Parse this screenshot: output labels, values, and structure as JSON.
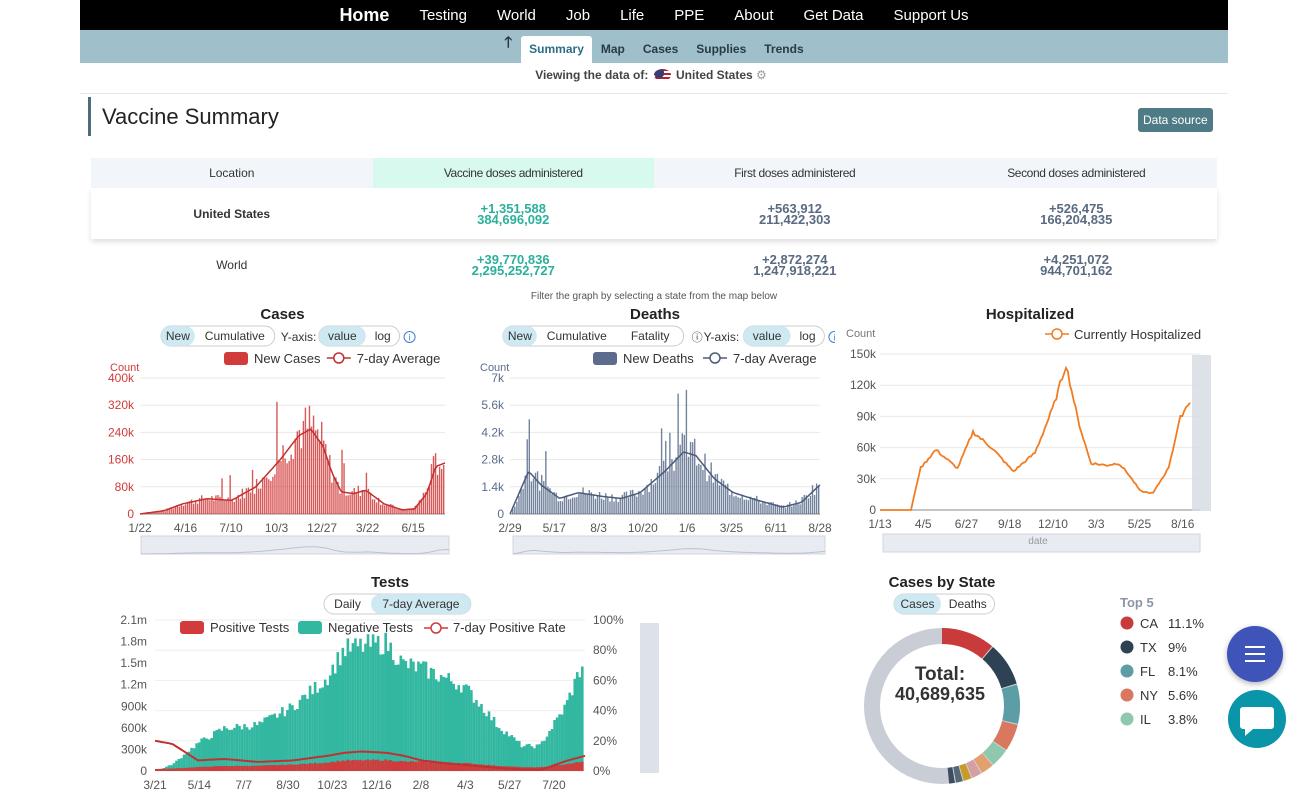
{
  "topnav": {
    "brand": "Home",
    "items": [
      "Testing",
      "World",
      "Job",
      "Life",
      "PPE",
      "About",
      "Get Data",
      "Support Us"
    ]
  },
  "subnav": {
    "up": "🡑",
    "items": [
      "Summary",
      "Map",
      "Cases",
      "Supplies",
      "Trends"
    ],
    "active": "Summary"
  },
  "viewing": {
    "label": "Viewing the data of:",
    "location": "United States",
    "gear": "⚙"
  },
  "page_title": "Vaccine Summary",
  "data_source_label": "Data source",
  "vaccine_table": {
    "headers": [
      "Location",
      "Vaccine doses administered",
      "First doses administered",
      "Second doses administered"
    ],
    "rows": [
      {
        "location": "United States",
        "total_delta": "+1,351,588",
        "total": "384,696,092",
        "first_delta": "+563,912",
        "first": "211,422,303",
        "second_delta": "+526,475",
        "second": "166,204,835"
      },
      {
        "location": "World",
        "total_delta": "+39,770,836",
        "total": "2,295,252,727",
        "first_delta": "+2,872,274",
        "first": "1,247,918,221",
        "second_delta": "+4,251,072",
        "second": "944,701,162"
      }
    ]
  },
  "filter_note": "Filter the graph by selecting a state from the map below",
  "colors": {
    "teal": "#2bb09c",
    "slate": "#5a6a80",
    "cases_red": "#d13b3b",
    "deaths_slate": "#5b6c8c",
    "hosp_orange": "#f07d24",
    "tests_green": "#32b7a0"
  },
  "chart_data": [
    {
      "type": "bar",
      "title": "Cases",
      "toggles": {
        "mode": [
          "New",
          "Cumulative"
        ],
        "axis_label": "Y-axis:",
        "axis": [
          "value",
          "log"
        ]
      },
      "ylabel": "Count",
      "legend": [
        "New Cases",
        "7-day Average"
      ],
      "yticks": [
        "0",
        "80k",
        "160k",
        "240k",
        "320k",
        "400k"
      ],
      "xticks": [
        "1/22",
        "4/16",
        "7/10",
        "10/3",
        "12/27",
        "3/22",
        "6/15"
      ],
      "ylim": [
        0,
        400000
      ],
      "x": [
        0,
        0.08,
        0.14,
        0.22,
        0.3,
        0.38,
        0.46,
        0.52,
        0.56,
        0.6,
        0.63,
        0.66,
        0.7,
        0.74,
        0.8,
        0.86,
        0.9,
        0.94,
        0.97,
        1.0
      ],
      "series": [
        {
          "name": "7-day Average",
          "values": [
            0,
            10000,
            30000,
            45000,
            40000,
            80000,
            160000,
            230000,
            250000,
            200000,
            120000,
            65000,
            60000,
            70000,
            30000,
            12000,
            15000,
            60000,
            140000,
            150000
          ]
        }
      ]
    },
    {
      "type": "bar",
      "title": "Deaths",
      "toggles": {
        "mode": [
          "New",
          "Cumulative",
          "Fatality"
        ],
        "axis_label": "Y-axis:",
        "axis": [
          "value",
          "log"
        ]
      },
      "ylabel": "Count",
      "legend": [
        "New Deaths",
        "7-day Average"
      ],
      "yticks": [
        "0",
        "1.4k",
        "2.8k",
        "4.2k",
        "5.6k",
        "7k"
      ],
      "xticks": [
        "2/29",
        "5/17",
        "8/3",
        "10/20",
        "1/6",
        "3/25",
        "6/11",
        "8/28"
      ],
      "ylim": [
        0,
        7000
      ],
      "x": [
        0,
        0.06,
        0.1,
        0.16,
        0.22,
        0.3,
        0.36,
        0.42,
        0.5,
        0.56,
        0.6,
        0.66,
        0.72,
        0.8,
        0.88,
        0.94,
        1.0
      ],
      "series": [
        {
          "name": "7-day Average",
          "values": [
            0,
            2200,
            1500,
            800,
            1100,
            900,
            800,
            1100,
            2200,
            3200,
            3000,
            1800,
            1100,
            700,
            350,
            600,
            1500
          ]
        }
      ]
    },
    {
      "type": "line",
      "title": "Hospitalized",
      "ylabel": "Count",
      "xlabel": "date",
      "legend": [
        "Currently Hospitalized"
      ],
      "yticks": [
        "0",
        "30k",
        "60k",
        "90k",
        "120k",
        "150k"
      ],
      "xticks": [
        "1/13",
        "4/5",
        "6/27",
        "9/18",
        "12/10",
        "3/3",
        "5/25",
        "8/16"
      ],
      "ylim": [
        0,
        150000
      ],
      "x": [
        0,
        0.1,
        0.13,
        0.18,
        0.25,
        0.3,
        0.36,
        0.43,
        0.5,
        0.56,
        0.6,
        0.64,
        0.68,
        0.73,
        0.77,
        0.8,
        0.84,
        0.88,
        0.93,
        0.97,
        1.0
      ],
      "series": [
        {
          "name": "Currently Hospitalized",
          "values": [
            0,
            0,
            40000,
            58000,
            40000,
            75000,
            60000,
            37000,
            55000,
            100000,
            140000,
            85000,
            45000,
            43000,
            45000,
            35000,
            18000,
            16000,
            40000,
            90000,
            105000
          ]
        }
      ]
    },
    {
      "type": "area",
      "title": "Tests",
      "toggles": {
        "mode": [
          "Daily",
          "7-day Average"
        ]
      },
      "legend": [
        "Positive Tests",
        "Negative Tests",
        "7-day Positive Rate"
      ],
      "yticks": [
        "0",
        "300k",
        "600k",
        "900k",
        "1.2m",
        "1.5m",
        "1.8m",
        "2.1m"
      ],
      "yticks_right": [
        "0%",
        "20%",
        "40%",
        "60%",
        "80%",
        "100%"
      ],
      "xticks": [
        "3/21",
        "5/14",
        "7/7",
        "8/30",
        "10/23",
        "12/16",
        "2/8",
        "4/3",
        "5/27",
        "7/20"
      ],
      "ylim": [
        0,
        2100000
      ],
      "x": [
        0,
        0.04,
        0.1,
        0.16,
        0.24,
        0.32,
        0.4,
        0.44,
        0.48,
        0.54,
        0.58,
        0.62,
        0.68,
        0.72,
        0.76,
        0.8,
        0.86,
        0.9,
        0.96,
        1.0
      ],
      "series": [
        {
          "name": "Negative Tests",
          "values": [
            0,
            100000,
            400000,
            600000,
            650000,
            900000,
            1300000,
            1700000,
            1750000,
            1800000,
            1500000,
            1450000,
            1300000,
            1200000,
            950000,
            650000,
            350000,
            350000,
            900000,
            1500000
          ]
        },
        {
          "name": "7-day Positive Rate",
          "values": [
            0.2,
            0.18,
            0.07,
            0.08,
            0.06,
            0.07,
            0.1,
            0.12,
            0.13,
            0.12,
            0.1,
            0.07,
            0.05,
            0.04,
            0.03,
            0.02,
            0.01,
            0.01,
            0.07,
            0.1
          ]
        }
      ]
    },
    {
      "type": "pie",
      "title": "Cases by State",
      "toggles": {
        "mode": [
          "Cases",
          "Deaths"
        ]
      },
      "center_label": "Total:",
      "center_value": "40,689,635",
      "legend_title": "Top 5",
      "categories": [
        "CA",
        "TX",
        "FL",
        "NY",
        "IL"
      ],
      "labels": [
        "11.1%",
        "9%",
        "8.1%",
        "5.6%",
        "3.8%"
      ],
      "values": [
        11.1,
        9,
        8.1,
        5.6,
        3.8
      ],
      "colors": [
        "#c93a3a",
        "#2f4253",
        "#5d9ea6",
        "#d9785e",
        "#8fc8ad"
      ]
    }
  ]
}
